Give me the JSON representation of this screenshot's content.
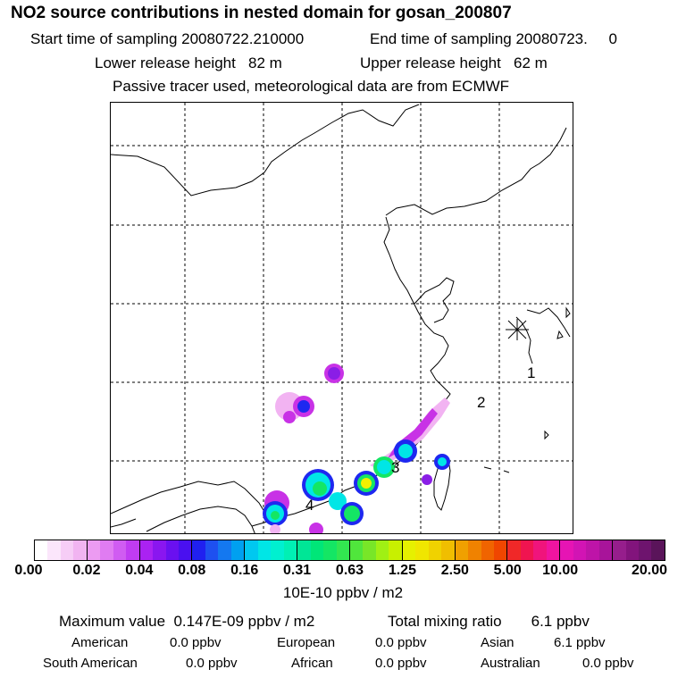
{
  "header": {
    "title": "NO2 source contributions in nested domain for gosan_200807",
    "start_time": "Start time of sampling 20080722.210000",
    "end_time": "End time of sampling 20080723.     0",
    "lower_height": "Lower release height   82 m",
    "upper_height": "Upper release height   62 m",
    "tracer_note": "Passive tracer used, meteorological data are from ECMWF"
  },
  "map": {
    "station_markers": [
      "1",
      "2",
      "3",
      "4"
    ],
    "station_symbol": "asterisk-icon",
    "colors": {
      "plume_light": "#f2b3f2",
      "plume_magenta": "#c832e6",
      "plume_purple": "#8a1ee6",
      "plume_blue": "#1e28f0",
      "plume_cyan": "#00e6e6",
      "plume_green": "#14e664",
      "plume_yellow": "#f0f000",
      "coast": "#000000"
    }
  },
  "legend": {
    "tick_labels": [
      "0.00",
      "0.02",
      "0.04",
      "0.08",
      "0.16",
      "0.31",
      "0.63",
      "1.25",
      "2.50",
      "5.00",
      "10.00",
      "20.00"
    ],
    "unit": "10E-10 ppbv / m2",
    "colors": [
      [
        "#ffffff",
        "#fbe6fb",
        "#f6cdf6",
        "#f1b4f1"
      ],
      [
        "#ec9bf2",
        "#e07cf2",
        "#d05cf2",
        "#c03cf2"
      ],
      [
        "#aa22f2",
        "#8a16f0",
        "#6a10f0",
        "#4a10f0"
      ],
      [
        "#2020f0",
        "#1e50f0",
        "#1478f0",
        "#00a0f0"
      ],
      [
        "#00c8f0",
        "#00e6e6",
        "#00f0d0",
        "#00f0b4"
      ],
      [
        "#00e696",
        "#00e678",
        "#14e664",
        "#32e650"
      ],
      [
        "#50e63c",
        "#78e628",
        "#a0f014",
        "#c8f000"
      ],
      [
        "#e6f000",
        "#f0e600",
        "#f0d200",
        "#f0be00"
      ],
      [
        "#f0a000",
        "#f08200",
        "#f06400",
        "#f04600"
      ],
      [
        "#f02828",
        "#f01450",
        "#f0147c",
        "#f014a0"
      ],
      [
        "#e614b4",
        "#d214b4",
        "#be14a8",
        "#a8149a"
      ],
      [
        "#961e8c",
        "#82147c",
        "#6e146e",
        "#5a145a"
      ]
    ]
  },
  "summary": {
    "max_value": "Maximum value  0.147E-09 ppbv / m2",
    "total_mixing": "Total mixing ratio       6.1 ppbv",
    "regions": [
      {
        "name": "American",
        "value": "0.0 ppbv"
      },
      {
        "name": "European",
        "value": "0.0 ppbv"
      },
      {
        "name": "Asian",
        "value": "6.1 ppbv"
      },
      {
        "name": "South American",
        "value": "0.0 ppbv"
      },
      {
        "name": "African",
        "value": "0.0 ppbv"
      },
      {
        "name": "Australian",
        "value": "0.0 ppbv"
      }
    ]
  }
}
